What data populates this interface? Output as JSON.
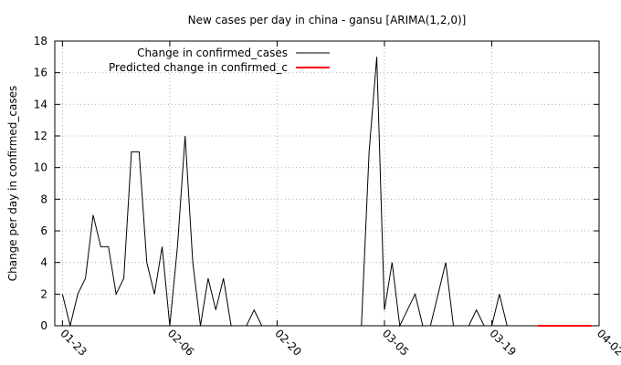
{
  "chart_data": {
    "type": "line",
    "title": "New cases per day in china - gansu [ARIMA(1,2,0)]",
    "xlabel": "",
    "ylabel": "Change per day in confirmed_cases",
    "x_axis": {
      "type": "date",
      "start": "01-22",
      "end": "04-02",
      "tick_labels": [
        "01-23",
        "02-06",
        "02-20",
        "03-05",
        "03-19",
        "04-02"
      ]
    },
    "ylim": [
      0,
      18
    ],
    "yticks": [
      0,
      2,
      4,
      6,
      8,
      10,
      12,
      14,
      16,
      18
    ],
    "grid": true,
    "legend_position": "top-left",
    "series": [
      {
        "name": "Change in confirmed_cases",
        "color": "#000000",
        "x": [
          "01-23",
          "01-24",
          "01-25",
          "01-26",
          "01-27",
          "01-28",
          "01-29",
          "01-30",
          "01-31",
          "02-01",
          "02-02",
          "02-03",
          "02-04",
          "02-05",
          "02-06",
          "02-07",
          "02-08",
          "02-09",
          "02-10",
          "02-11",
          "02-12",
          "02-13",
          "02-14",
          "02-15",
          "02-16",
          "02-17",
          "02-18",
          "02-19",
          "02-20",
          "02-21",
          "02-22",
          "02-23",
          "02-24",
          "02-25",
          "02-26",
          "02-27",
          "02-28",
          "02-29",
          "03-01",
          "03-02",
          "03-03",
          "03-04",
          "03-05",
          "03-06",
          "03-07",
          "03-08",
          "03-09",
          "03-10",
          "03-11",
          "03-12",
          "03-13",
          "03-14",
          "03-15",
          "03-16",
          "03-17",
          "03-18",
          "03-19",
          "03-20",
          "03-21",
          "03-22"
        ],
        "values": [
          2,
          0,
          2,
          3,
          7,
          5,
          5,
          2,
          3,
          11,
          11,
          4,
          2,
          5,
          0,
          5,
          12,
          4,
          0,
          3,
          1,
          3,
          0,
          0,
          0,
          1,
          0,
          0,
          0,
          0,
          0,
          0,
          0,
          0,
          0,
          0,
          0,
          0,
          0,
          0,
          11,
          17,
          1,
          4,
          0,
          1,
          2,
          0,
          0,
          2,
          4,
          0,
          0,
          0,
          1,
          0,
          0,
          2,
          0,
          0
        ]
      },
      {
        "name": "Predicted change in confirmed_c",
        "color": "#ff0000",
        "x": [
          "03-25",
          "04-01"
        ],
        "values": [
          0,
          0
        ]
      }
    ]
  }
}
